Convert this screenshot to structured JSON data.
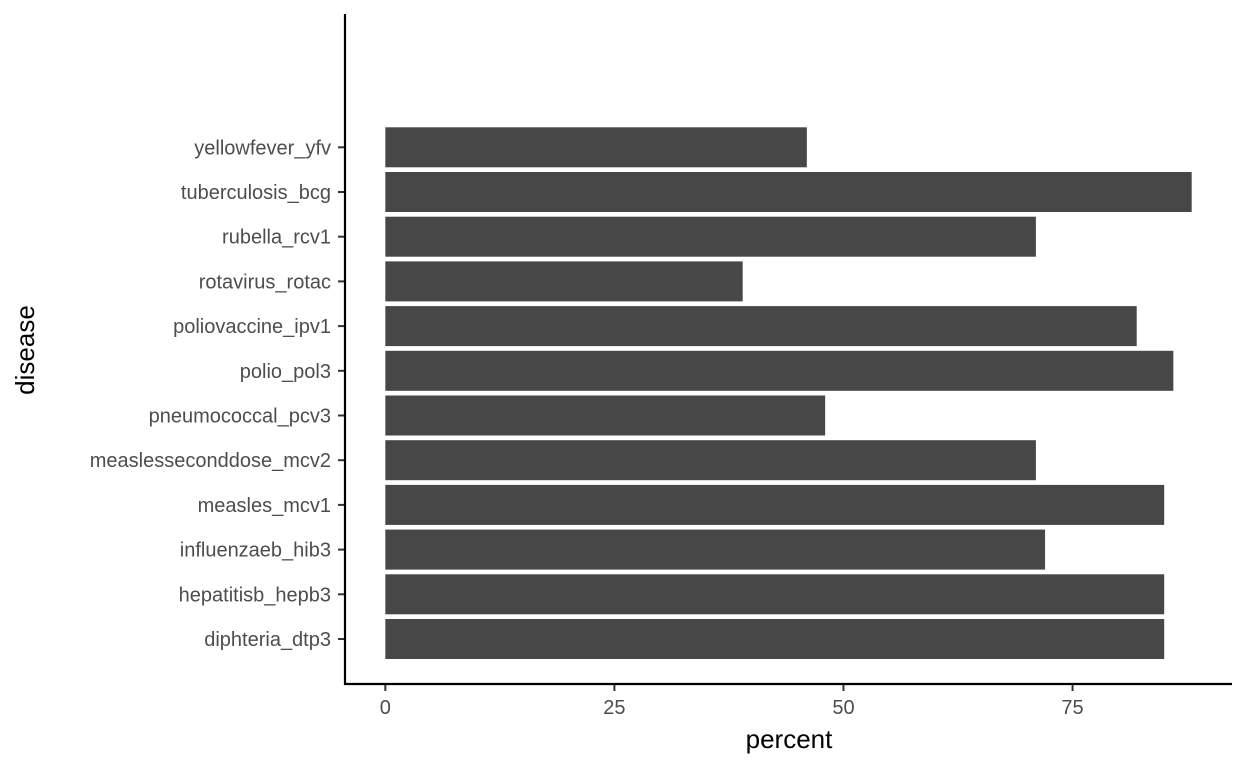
{
  "chart_data": {
    "type": "bar",
    "orientation": "horizontal",
    "xlabel": "percent",
    "ylabel": "disease",
    "categories": [
      "diphteria_dtp3",
      "hepatitisb_hepb3",
      "influenzaeb_hib3",
      "measles_mcv1",
      "measlesseconddose_mcv2",
      "pneumococcal_pcv3",
      "polio_pol3",
      "poliovaccine_ipv1",
      "rotavirus_rotac",
      "rubella_rcv1",
      "tuberculosis_bcg",
      "yellowfever_yfv"
    ],
    "values": [
      85,
      85,
      72,
      85,
      71,
      48,
      86,
      82,
      39,
      71,
      88,
      46
    ],
    "x_ticks": [
      0,
      25,
      50,
      75
    ],
    "x_tick_labels": [
      "0",
      "25",
      "50",
      "75"
    ],
    "xlim": [
      -4.4,
      92.4
    ],
    "grid": false,
    "bar_color": "#474747"
  }
}
